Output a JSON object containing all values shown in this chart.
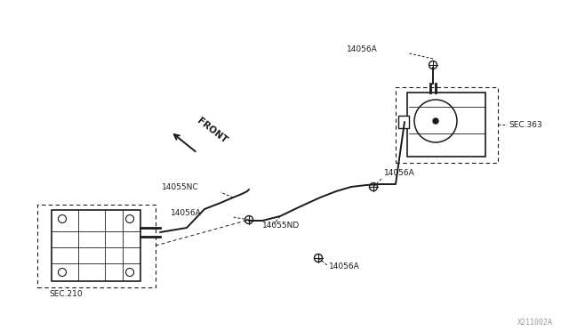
{
  "bg_color": "#ffffff",
  "line_color": "#1a1a1a",
  "fig_width": 6.4,
  "fig_height": 3.72,
  "watermark": "X211002A",
  "front_label": "FRONT",
  "sec363_label": "SEC.363",
  "sec210_label": "SEC.210",
  "part_labels": [
    "14056A",
    "14056A",
    "14055NC",
    "14056A",
    "14055ND",
    "14056A"
  ],
  "font_size_label": 6.5,
  "font_size_watermark": 6.0
}
